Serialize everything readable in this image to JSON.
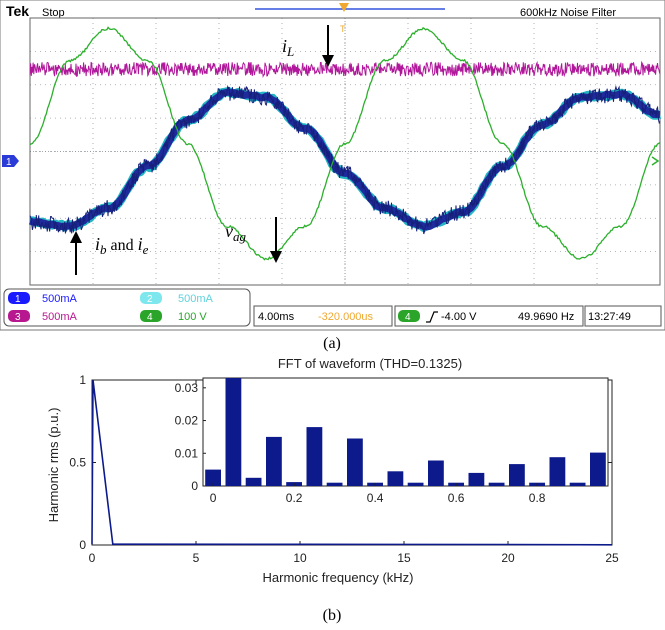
{
  "scope": {
    "brand": "Tek",
    "status": "Stop",
    "filter_text": "600kHz  Noise Filter",
    "channels": [
      {
        "num": "1",
        "scale": "500mA",
        "color": "#1a1aff"
      },
      {
        "num": "2",
        "scale": "500mA",
        "color": "#7ee7ee"
      },
      {
        "num": "3",
        "scale": "500mA",
        "color": "#b8188f"
      },
      {
        "num": "4",
        "scale": "100 V",
        "color": "#2aa52a"
      }
    ],
    "timebase": "4.00ms",
    "offset": "-320.000us",
    "trigger_channel": "4",
    "trigger_level": "-4.00 V",
    "frequency": "49.9690 Hz",
    "clock": "13:27:49",
    "ground_marker": "1",
    "label_il": "i",
    "label_il_sub": "L",
    "label_ib": "i",
    "label_ib_sub": "b",
    "label_and": " and ",
    "label_ie": "i",
    "label_ie_sub": "e",
    "label_vag": "v",
    "label_vag_sub": "ag",
    "caption": "(a)",
    "colors": {
      "il": "#b0179a",
      "ib": "#1f2a9c",
      "vag": "#2bb02b",
      "grid": "#9aa0a6"
    }
  },
  "fft": {
    "caption": "(b)"
  },
  "chart_data": [
    {
      "type": "line",
      "title": "",
      "xlabel": "",
      "ylabel": "",
      "x_unit": "ms",
      "xlim": [
        0,
        40
      ],
      "series": [
        {
          "name": "i_L",
          "channel": "3",
          "x": [
            0,
            5,
            10,
            15,
            20,
            25,
            30,
            35,
            40
          ],
          "values": [
            0.05,
            0.05,
            0.05,
            0.05,
            0.05,
            0.05,
            0.05,
            0.05,
            0.05
          ]
        },
        {
          "name": "i_b and i_e",
          "channel": "1",
          "x": [
            0,
            2.5,
            5,
            7.5,
            10,
            12.5,
            15,
            17.5,
            20,
            22.5,
            25,
            27.5,
            30,
            32.5,
            35,
            37.5,
            40
          ],
          "values": [
            -0.45,
            -0.48,
            -0.35,
            -0.05,
            0.28,
            0.48,
            0.45,
            0.22,
            -0.1,
            -0.35,
            -0.48,
            -0.38,
            -0.05,
            0.25,
            0.45,
            0.47,
            0.32
          ]
        },
        {
          "name": "v_ag",
          "channel": "4",
          "x": [
            0,
            2.5,
            5,
            7.5,
            10,
            12.5,
            15,
            17.5,
            20,
            22.5,
            25,
            27.5,
            30,
            32.5,
            35,
            37.5,
            40
          ],
          "values": [
            0,
            230,
            320,
            230,
            0,
            -230,
            -320,
            -230,
            0,
            230,
            320,
            230,
            0,
            -230,
            -320,
            -230,
            0
          ]
        }
      ]
    },
    {
      "type": "line",
      "title": "FFT of waveform (THD=0.1325)",
      "xlabel": "Harmonic frequency (kHz)",
      "ylabel": "Harmonic rms (p.u.)",
      "xlim": [
        0,
        25
      ],
      "ylim": [
        0,
        1
      ],
      "x_ticks": [
        "0",
        "5",
        "10",
        "15",
        "20",
        "25"
      ],
      "y_ticks": [
        "0",
        "0.5",
        "1"
      ],
      "x": [
        0,
        0.05,
        1,
        10,
        20,
        25
      ],
      "values": [
        0.005,
        1.0,
        0.005,
        0.004,
        0.003,
        0.001
      ],
      "grid": false
    },
    {
      "type": "bar",
      "title": "",
      "xlabel": "",
      "ylabel": "",
      "xlim": [
        -0.025,
        0.975
      ],
      "ylim": [
        0,
        0.033
      ],
      "x_ticks": [
        "0",
        "0.2",
        "0.4",
        "0.6",
        "0.8"
      ],
      "y_ticks": [
        "0",
        "0.01",
        "0.02",
        "0.03"
      ],
      "x": [
        0,
        0.05,
        0.1,
        0.15,
        0.2,
        0.25,
        0.3,
        0.35,
        0.4,
        0.45,
        0.5,
        0.55,
        0.6,
        0.65,
        0.7,
        0.75,
        0.8,
        0.85,
        0.9,
        0.95
      ],
      "values": [
        0.005,
        0.033,
        0.0025,
        0.015,
        0.0012,
        0.018,
        0.001,
        0.0145,
        0.001,
        0.0045,
        0.001,
        0.0078,
        0.001,
        0.004,
        0.001,
        0.0067,
        0.001,
        0.0088,
        0.001,
        0.0102
      ],
      "bar_color": "#0d1a8c"
    }
  ]
}
